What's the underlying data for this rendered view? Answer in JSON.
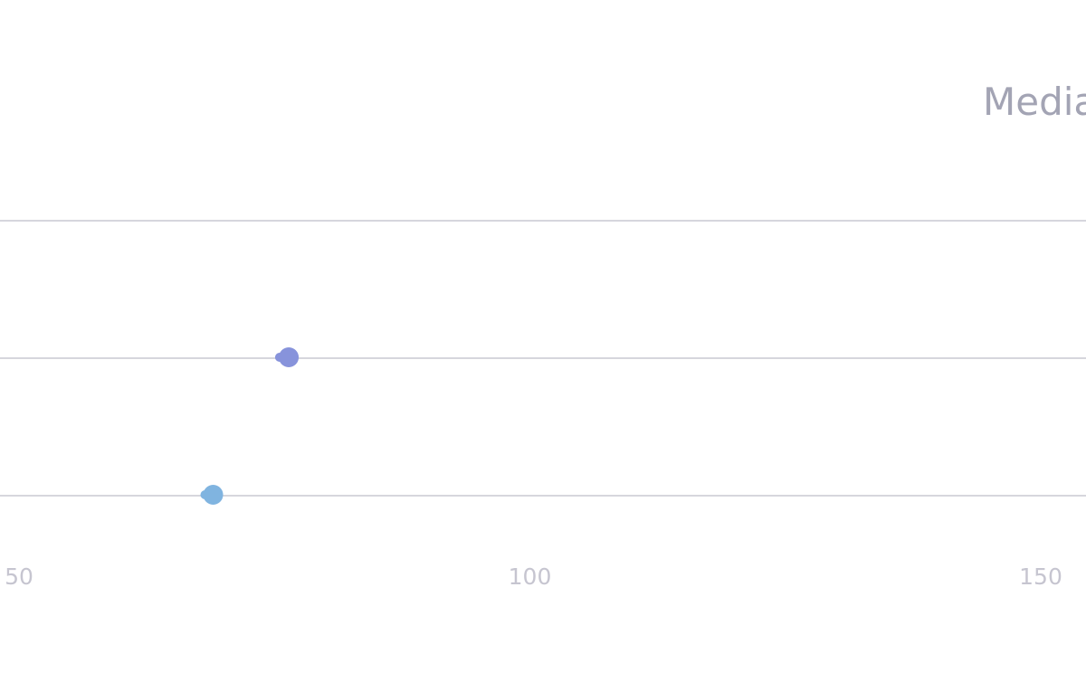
{
  "chart_data": {
    "type": "scatter",
    "title": "Media",
    "xlim": [
      48.2,
      153
    ],
    "xticks": [
      50,
      100,
      150
    ],
    "grid": true,
    "rows": [
      {
        "value": 76.4,
        "start": 75.5,
        "color": "#8793db"
      },
      {
        "value": 69.0,
        "start": 68.2,
        "color": "#80b4e0"
      }
    ]
  }
}
